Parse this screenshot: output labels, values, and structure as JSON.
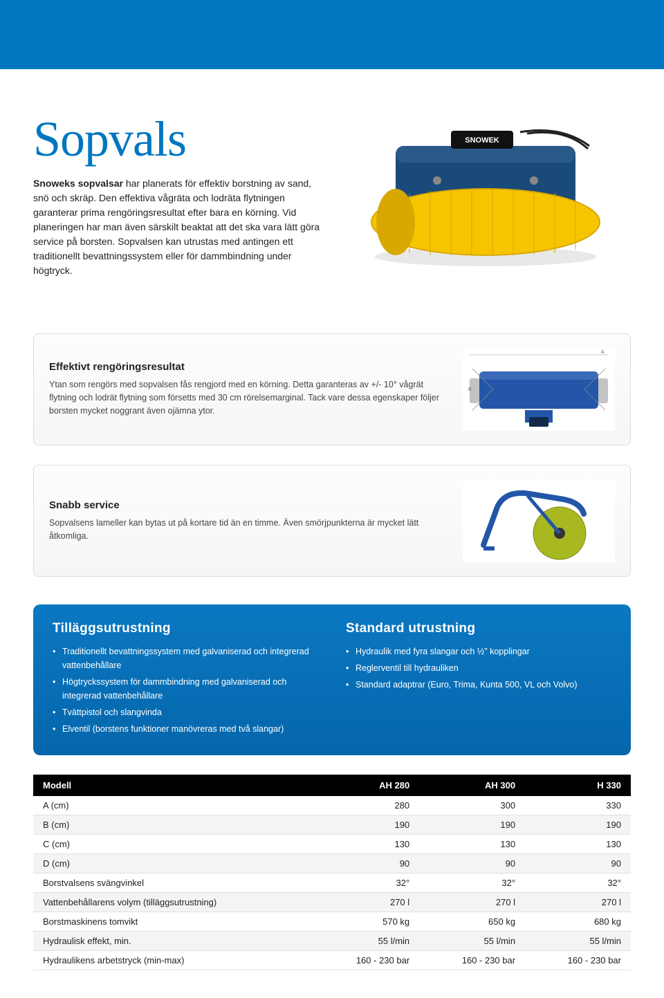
{
  "header": {
    "bg_color": "#0076c0"
  },
  "hero": {
    "title": "Sopvals",
    "title_color": "#0076c0",
    "intro_bold": "Snoweks sopvalsar",
    "intro_rest": " har planerats för effektiv borstning av sand, snö och skräp. Den effektiva vågräta och lodräta flytningen garanterar prima rengöringsresultat efter bara en körning. Vid planeringen har man även särskilt beaktat att det ska vara lätt göra service på borsten. Sopvalsen kan utrustas med antingen ett traditionellt bevattningssystem eller för dammbindning under högtryck."
  },
  "illus": {
    "body_color": "#1a4a7a",
    "brush_color": "#f7c500",
    "brush_dark": "#d9a800",
    "metal": "#555555",
    "brand_label": "SNOWEK"
  },
  "features": [
    {
      "title": "Effektivt rengöringsresultat",
      "body": "Ytan som rengörs med sopvalsen fås rengjord med en körning. Detta garanteras av +/- 10° vågrät flytning och lodrät flytning som försetts med 30 cm rörelsemarginal. Tack vare dessa egenskaper följer borsten mycket noggrant även ojämna ytor.",
      "diagram": {
        "body": "#2356a8",
        "brush": "#888",
        "bg": "#fff",
        "overlay": "#aaa"
      }
    },
    {
      "title": "Snabb service",
      "body": "Sopvalsens lameller kan bytas ut på kortare tid än en timme. Även smörjpunkterna är mycket lätt åtkomliga.",
      "diagram": {
        "arm": "#2356a8",
        "wheel": "#a8b820",
        "bg": "#fff"
      }
    }
  ],
  "equipment": {
    "addons": {
      "title": "Tilläggsutrustning",
      "items": [
        "Traditionellt bevattningssystem med galvaniserad och integrerad vattenbehållare",
        "Högtryckssystem för dammbindning med galvaniserad och integrerad vattenbehållare",
        "Tvättpistol och slangvinda",
        "Elventil (borstens funktioner manövreras med två slangar)"
      ]
    },
    "standard": {
      "title": "Standard utrustning",
      "items": [
        "Hydraulik med fyra slangar och ½\" kopplingar",
        "Reglerventil till hydrauliken",
        "Standard adaptrar (Euro, Trima, Kunta 500, VL och Volvo)"
      ]
    },
    "bg_gradient_from": "#0a78c2",
    "bg_gradient_to": "#0566ab"
  },
  "specs": {
    "header_bg": "#000000",
    "header_fg": "#ffffff",
    "columns": [
      "Modell",
      "AH 280",
      "AH 300",
      "H 330"
    ],
    "rows": [
      [
        "A (cm)",
        "280",
        "300",
        "330"
      ],
      [
        "B (cm)",
        "190",
        "190",
        "190"
      ],
      [
        "C (cm)",
        "130",
        "130",
        "130"
      ],
      [
        "D (cm)",
        "90",
        "90",
        "90"
      ],
      [
        "Borstvalsens svängvinkel",
        "32°",
        "32°",
        "32°"
      ],
      [
        "Vattenbehållarens volym (tilläggsutrustning)",
        "270 l",
        "270 l",
        "270 l"
      ],
      [
        "Borstmaskinens tomvikt",
        "570 kg",
        "650 kg",
        "680 kg"
      ],
      [
        "Hydraulisk effekt, min.",
        "55 l/min",
        "55 l/min",
        "55 l/min"
      ],
      [
        "Hydraulikens arbetstryck (min-max)",
        "160 - 230 bar",
        "160 - 230 bar",
        "160 - 230 bar"
      ]
    ]
  }
}
